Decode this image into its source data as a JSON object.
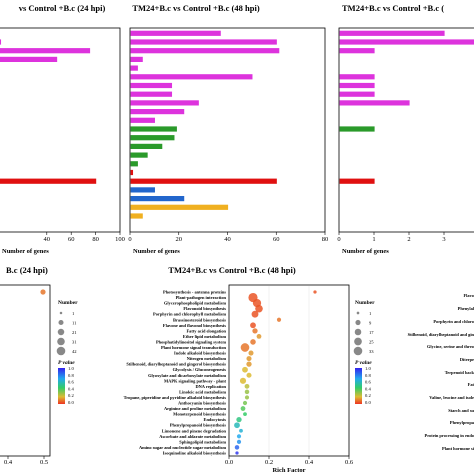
{
  "chart_data": [
    {
      "type": "bar",
      "title": "vs Control +B.c (24 hpi)",
      "xlabel": "Number of genes",
      "xlim": [
        0,
        100
      ],
      "xticks": [
        40,
        60,
        80,
        100
      ],
      "bars": [
        {
          "row": 0,
          "value": 2,
          "color": "#dd33dd"
        },
        {
          "row": 1,
          "value": 75,
          "color": "#dd33dd"
        },
        {
          "row": 2,
          "value": 48,
          "color": "#dd33dd"
        },
        {
          "row": 16,
          "value": 80,
          "color": "#e01010"
        }
      ]
    },
    {
      "type": "bar",
      "title": "TM24+B.c vs Control +B.c (48 hpi)",
      "xlabel": "Number of genes",
      "xlim": [
        0,
        80
      ],
      "xticks": [
        0,
        20,
        40,
        60,
        80
      ],
      "bars": [
        {
          "row": -1,
          "value": 37,
          "color": "#dd33dd"
        },
        {
          "row": 0,
          "value": 60,
          "color": "#dd33dd"
        },
        {
          "row": 1,
          "value": 61,
          "color": "#dd33dd"
        },
        {
          "row": 2,
          "value": 5,
          "color": "#dd33dd"
        },
        {
          "row": 3,
          "value": 3,
          "color": "#dd33dd"
        },
        {
          "row": 4,
          "value": 50,
          "color": "#dd33dd"
        },
        {
          "row": 5,
          "value": 17,
          "color": "#dd33dd"
        },
        {
          "row": 6,
          "value": 17,
          "color": "#dd33dd"
        },
        {
          "row": 7,
          "value": 28,
          "color": "#dd33dd"
        },
        {
          "row": 8,
          "value": 22,
          "color": "#dd33dd"
        },
        {
          "row": 9,
          "value": 10,
          "color": "#dd33dd"
        },
        {
          "row": 10,
          "value": 19,
          "color": "#2a9a2a"
        },
        {
          "row": 11,
          "value": 18,
          "color": "#2a9a2a"
        },
        {
          "row": 12,
          "value": 13,
          "color": "#2a9a2a"
        },
        {
          "row": 13,
          "value": 7,
          "color": "#2a9a2a"
        },
        {
          "row": 14,
          "value": 3,
          "color": "#2a9a2a"
        },
        {
          "row": 15,
          "value": 1,
          "color": "#e01010"
        },
        {
          "row": 16,
          "value": 60,
          "color": "#e01010"
        },
        {
          "row": 17,
          "value": 10,
          "color": "#2266cc"
        },
        {
          "row": 18,
          "value": 22,
          "color": "#2266cc"
        },
        {
          "row": 19,
          "value": 40,
          "color": "#f0b020"
        },
        {
          "row": 20,
          "value": 5,
          "color": "#f0b020"
        }
      ]
    },
    {
      "type": "bar",
      "title": "TM24+B.c vs Control +B.c (",
      "xlabel": "Number of genes",
      "xlim": [
        0,
        4
      ],
      "xticks": [
        0,
        1,
        2,
        3,
        4
      ],
      "bars": [
        {
          "row": -1,
          "value": 3,
          "color": "#dd33dd"
        },
        {
          "row": 0,
          "value": 4,
          "color": "#dd33dd"
        },
        {
          "row": 1,
          "value": 1,
          "color": "#dd33dd"
        },
        {
          "row": 4,
          "value": 1,
          "color": "#dd33dd"
        },
        {
          "row": 5,
          "value": 1,
          "color": "#dd33dd"
        },
        {
          "row": 6,
          "value": 1,
          "color": "#dd33dd"
        },
        {
          "row": 7,
          "value": 2,
          "color": "#dd33dd"
        },
        {
          "row": 10,
          "value": 1,
          "color": "#2a9a2a"
        },
        {
          "row": 16,
          "value": 1,
          "color": "#e01010"
        }
      ]
    },
    {
      "type": "scatter",
      "title": "B.c (24 hpi)",
      "xticks": [
        "0.4",
        "0.5"
      ],
      "points": [
        {
          "x": 0.56,
          "y": 0,
          "size": 1,
          "pvalue": 0.1
        }
      ]
    },
    {
      "type": "scatter",
      "title": "TM24+B.c vs Control +B.c (48 hpi)",
      "xlabel": "Rich Factor",
      "xlim": [
        0.0,
        0.6
      ],
      "xticks": [
        "0.0",
        "0.2",
        "0.4",
        "0.6"
      ],
      "pathways": [
        "Photosynthesis - antenna proteins",
        "Plant-pathogen interaction",
        "Glycerophospholipid metabolism",
        "Flavonoid biosynthesis",
        "Porphyrin and chlorophyll metabolism",
        "Brassinosteroid biosynthesis",
        "Flavone and flavonol biosynthesis",
        "Fatty acid elongation",
        "Ether lipid metabolism",
        "Phosphatidylinositol signaling system",
        "Plant hormone signal transduction",
        "Indole alkaloid biosynthesis",
        "Nitrogen metabolism",
        "Stilbenoid, diarylheptanoid and gingerol biosynthesis",
        "Glycolysis / Gluconeogenesis",
        "Glyoxylate and dicarboxylate metabolism",
        "MAPK signaling pathway - plant",
        "DNA replication",
        "Linoleic acid metabolism",
        "Tropane, piperidine and pyridine alkaloid biosynthesis",
        "Anthocyanin biosynthesis",
        "Arginine and proline metabolism",
        "Monoterpenoid biosynthesis",
        "Endocytosis",
        "Phenylpropanoid biosynthesis",
        "Limonene and pinene degradation",
        "Ascorbate and aldarate metabolism",
        "Sphingolipid metabolism",
        "Amino sugar and nucleotide sugar metabolism",
        "Isoquinoline alkaloid biosynthesis"
      ],
      "points": [
        {
          "x": 0.43,
          "y": 0,
          "size": 1,
          "pvalue": 0.05
        },
        {
          "x": 0.12,
          "y": 1,
          "size": 33,
          "pvalue": 0.05
        },
        {
          "x": 0.14,
          "y": 2,
          "size": 25,
          "pvalue": 0.05
        },
        {
          "x": 0.15,
          "y": 3,
          "size": 20,
          "pvalue": 0.05
        },
        {
          "x": 0.13,
          "y": 4,
          "size": 15,
          "pvalue": 0.05
        },
        {
          "x": 0.25,
          "y": 5,
          "size": 3,
          "pvalue": 0.1
        },
        {
          "x": 0.12,
          "y": 6,
          "size": 9,
          "pvalue": 0.05
        },
        {
          "x": 0.13,
          "y": 7,
          "size": 7,
          "pvalue": 0.1
        },
        {
          "x": 0.15,
          "y": 8,
          "size": 5,
          "pvalue": 0.15
        },
        {
          "x": 0.12,
          "y": 9,
          "size": 8,
          "pvalue": 0.1
        },
        {
          "x": 0.08,
          "y": 10,
          "size": 28,
          "pvalue": 0.1
        },
        {
          "x": 0.11,
          "y": 11,
          "size": 6,
          "pvalue": 0.15
        },
        {
          "x": 0.1,
          "y": 12,
          "size": 6,
          "pvalue": 0.15
        },
        {
          "x": 0.1,
          "y": 13,
          "size": 7,
          "pvalue": 0.15
        },
        {
          "x": 0.08,
          "y": 14,
          "size": 9,
          "pvalue": 0.2
        },
        {
          "x": 0.1,
          "y": 15,
          "size": 6,
          "pvalue": 0.2
        },
        {
          "x": 0.07,
          "y": 16,
          "size": 11,
          "pvalue": 0.2
        },
        {
          "x": 0.09,
          "y": 17,
          "size": 5,
          "pvalue": 0.25
        },
        {
          "x": 0.09,
          "y": 18,
          "size": 4,
          "pvalue": 0.3
        },
        {
          "x": 0.09,
          "y": 19,
          "size": 3,
          "pvalue": 0.3
        },
        {
          "x": 0.08,
          "y": 20,
          "size": 3,
          "pvalue": 0.35
        },
        {
          "x": 0.07,
          "y": 21,
          "size": 5,
          "pvalue": 0.4
        },
        {
          "x": 0.08,
          "y": 22,
          "size": 2,
          "pvalue": 0.45
        },
        {
          "x": 0.05,
          "y": 23,
          "size": 7,
          "pvalue": 0.5
        },
        {
          "x": 0.04,
          "y": 24,
          "size": 9,
          "pvalue": 0.6
        },
        {
          "x": 0.06,
          "y": 25,
          "size": 2,
          "pvalue": 0.65
        },
        {
          "x": 0.05,
          "y": 26,
          "size": 3,
          "pvalue": 0.7
        },
        {
          "x": 0.05,
          "y": 27,
          "size": 3,
          "pvalue": 0.75
        },
        {
          "x": 0.04,
          "y": 28,
          "size": 4,
          "pvalue": 0.85
        },
        {
          "x": 0.04,
          "y": 29,
          "size": 1,
          "pvalue": 0.95
        }
      ],
      "legend": {
        "size_title": "Number",
        "size_levels": [
          "1",
          "11",
          "21",
          "31",
          "42"
        ],
        "color_title": "P value",
        "color_ticks": [
          "1.0",
          "0.8",
          "0.6",
          "0.4",
          "0.2",
          "0.0"
        ]
      }
    },
    {
      "type": "scatter",
      "title": "",
      "pathways": [
        "Flavo",
        "Phenylal",
        "Porphyrin and chloro",
        "Stilbenoid, diarylheptanoid and gin",
        "Glycine, serine and threo",
        "Diterpe",
        "Terpenoid back",
        "Fat",
        "Valine, leucine and isole",
        "Starch and su",
        "Phenylpropa",
        "Protein processing in endo",
        "Plant hormone si"
      ],
      "legend": {
        "size_title": "Number",
        "size_levels": [
          "1",
          "9",
          "17",
          "25",
          "33"
        ],
        "color_title": "P value",
        "color_ticks": [
          "1.0",
          "0.8",
          "0.6",
          "0.4",
          "0.2",
          "0.0"
        ]
      }
    }
  ]
}
